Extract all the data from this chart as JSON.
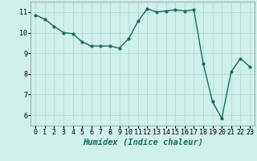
{
  "x": [
    0,
    1,
    2,
    3,
    4,
    5,
    6,
    7,
    8,
    9,
    10,
    11,
    12,
    13,
    14,
    15,
    16,
    17,
    18,
    19,
    20,
    21,
    22,
    23
  ],
  "y": [
    10.85,
    10.65,
    10.3,
    10.0,
    9.95,
    9.55,
    9.35,
    9.35,
    9.35,
    9.25,
    9.7,
    10.55,
    11.15,
    11.0,
    11.05,
    11.1,
    11.05,
    11.1,
    8.5,
    6.65,
    5.85,
    8.1,
    8.75,
    8.35
  ],
  "line_color": "#1a6b5a",
  "marker": "o",
  "markersize": 2.0,
  "linewidth": 1.0,
  "xlabel": "Humidex (Indice chaleur)",
  "xlabel_fontsize": 7.5,
  "xlabel_style": "italic",
  "ylim": [
    5.5,
    11.5
  ],
  "xlim": [
    -0.5,
    23.5
  ],
  "yticks": [
    6,
    7,
    8,
    9,
    10,
    11
  ],
  "xticks": [
    0,
    1,
    2,
    3,
    4,
    5,
    6,
    7,
    8,
    9,
    10,
    11,
    12,
    13,
    14,
    15,
    16,
    17,
    18,
    19,
    20,
    21,
    22,
    23
  ],
  "bg_color": "#cff0eb",
  "grid_color": "#b8ddd8",
  "tick_fontsize": 6.0,
  "font_family": "monospace"
}
